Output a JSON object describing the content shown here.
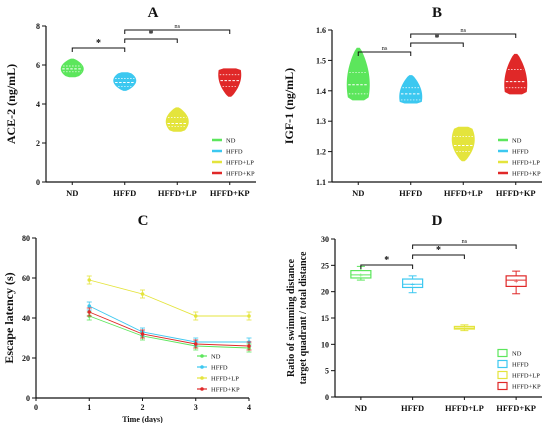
{
  "colors": {
    "ND": "#5ce65c",
    "HFFD": "#3cc8f0",
    "HFFD+LP": "#e4e43c",
    "HFFD+KP": "#e02828"
  },
  "chart_data": [
    {
      "panel": "A",
      "type": "violin",
      "categories": [
        "ND",
        "HFFD",
        "HFFD+LP",
        "HFFD+KP"
      ],
      "ylabel": "ACE-2 (ng/mL)",
      "ylim": [
        0,
        8
      ],
      "yticks": [
        0,
        2,
        4,
        6,
        8
      ],
      "legend": [
        "ND",
        "HFFD",
        "HFFD+LP",
        "HFFD+KP"
      ],
      "legend_position": "bottom-right",
      "series": [
        {
          "name": "ND",
          "min": 5.4,
          "q1": 5.65,
          "median": 5.8,
          "q3": 5.95,
          "max": 6.3,
          "widest": 5.8
        },
        {
          "name": "HFFD",
          "min": 4.7,
          "q1": 4.9,
          "median": 5.1,
          "q3": 5.3,
          "max": 5.6,
          "widest": 5.2
        },
        {
          "name": "HFFD+LP",
          "min": 2.6,
          "q1": 2.85,
          "median": 3.0,
          "q3": 3.3,
          "max": 3.8,
          "widest": 3.1
        },
        {
          "name": "HFFD+KP",
          "min": 4.4,
          "q1": 4.9,
          "median": 5.2,
          "q3": 5.5,
          "max": 5.8,
          "widest": 5.5
        }
      ],
      "comparisons": [
        {
          "from": "ND",
          "to": "HFFD",
          "label": "*",
          "level": 1
        },
        {
          "from": "HFFD",
          "to": "HFFD+LP",
          "label": "*",
          "level": 2
        },
        {
          "from": "HFFD",
          "to": "HFFD+KP",
          "label": "ns",
          "level": 3
        }
      ]
    },
    {
      "panel": "B",
      "type": "violin",
      "categories": [
        "ND",
        "HFFD",
        "HFFD+LP",
        "HFFD+KP"
      ],
      "ylabel": "IGF-1 (ng/mL)",
      "ylim": [
        1.1,
        1.6
      ],
      "yticks": [
        1.1,
        1.2,
        1.3,
        1.4,
        1.5,
        1.6
      ],
      "legend": [
        "ND",
        "HFFD",
        "HFFD+LP",
        "HFFD+KP"
      ],
      "legend_position": "bottom-right",
      "series": [
        {
          "name": "ND",
          "min": 1.37,
          "q1": 1.39,
          "median": 1.42,
          "q3": 1.46,
          "max": 1.54,
          "widest": 1.42
        },
        {
          "name": "HFFD",
          "min": 1.36,
          "q1": 1.37,
          "median": 1.39,
          "q3": 1.41,
          "max": 1.45,
          "widest": 1.38
        },
        {
          "name": "HFFD+LP",
          "min": 1.17,
          "q1": 1.2,
          "median": 1.22,
          "q3": 1.25,
          "max": 1.28,
          "widest": 1.24
        },
        {
          "name": "HFFD+KP",
          "min": 1.39,
          "q1": 1.41,
          "median": 1.43,
          "q3": 1.47,
          "max": 1.52,
          "widest": 1.42
        }
      ],
      "comparisons": [
        {
          "from": "ND",
          "to": "HFFD",
          "label": "ns",
          "level": 1
        },
        {
          "from": "HFFD",
          "to": "HFFD+LP",
          "label": "*",
          "level": 2
        },
        {
          "from": "HFFD",
          "to": "HFFD+KP",
          "label": "ns",
          "level": 3
        }
      ]
    },
    {
      "panel": "C",
      "type": "line",
      "x": [
        1,
        2,
        3,
        4
      ],
      "xlabel": "Time (days)",
      "ylabel": "Escape latency (s)",
      "xlim": [
        0,
        4
      ],
      "xticks": [
        0,
        1,
        2,
        3,
        4
      ],
      "ylim": [
        0,
        80
      ],
      "yticks": [
        0,
        20,
        40,
        60,
        80
      ],
      "legend": [
        "ND",
        "HFFD",
        "HFFD+LP",
        "HFFD+KP"
      ],
      "legend_position": "bottom-right",
      "series": [
        {
          "name": "ND",
          "values": [
            41,
            31,
            26,
            25
          ],
          "errors": [
            2,
            2,
            2,
            2
          ]
        },
        {
          "name": "HFFD",
          "values": [
            46,
            33,
            28,
            28
          ],
          "errors": [
            2,
            2,
            2,
            2
          ]
        },
        {
          "name": "HFFD+LP",
          "values": [
            59,
            52,
            41,
            41
          ],
          "errors": [
            2,
            2,
            2,
            2
          ]
        },
        {
          "name": "HFFD+KP",
          "values": [
            43,
            32,
            27,
            26
          ],
          "errors": [
            2,
            2,
            2,
            2
          ]
        }
      ]
    },
    {
      "panel": "D",
      "type": "box",
      "categories": [
        "ND",
        "HFFD",
        "HFFD+LP",
        "HFFD+KP"
      ],
      "ylabel_lines": [
        "Ratio of swimming distance",
        "target quadrant / total distance"
      ],
      "ylim": [
        0,
        30
      ],
      "yticks": [
        0,
        5,
        10,
        15,
        20,
        25,
        30
      ],
      "legend": [
        "ND",
        "HFFD",
        "HFFD+LP",
        "HFFD+KP"
      ],
      "legend_position": "bottom-right",
      "series": [
        {
          "name": "ND",
          "min": 22.2,
          "q1": 22.6,
          "median": 23.2,
          "q3": 24.0,
          "max": 24.8,
          "mean": 23.2
        },
        {
          "name": "HFFD",
          "min": 19.8,
          "q1": 20.8,
          "median": 21.4,
          "q3": 22.4,
          "max": 23.0,
          "mean": 21.4
        },
        {
          "name": "HFFD+LP",
          "min": 12.6,
          "q1": 12.9,
          "median": 13.1,
          "q3": 13.4,
          "max": 13.7,
          "mean": 13.1
        },
        {
          "name": "HFFD+KP",
          "min": 19.6,
          "q1": 21.0,
          "median": 22.2,
          "q3": 23.0,
          "max": 23.9,
          "mean": 22.0
        }
      ],
      "comparisons": [
        {
          "from": "ND",
          "to": "HFFD",
          "label": "*",
          "level": 1
        },
        {
          "from": "HFFD",
          "to": "HFFD+LP",
          "label": "*",
          "level": 2
        },
        {
          "from": "HFFD",
          "to": "HFFD+KP",
          "label": "ns",
          "level": 3
        }
      ]
    }
  ]
}
